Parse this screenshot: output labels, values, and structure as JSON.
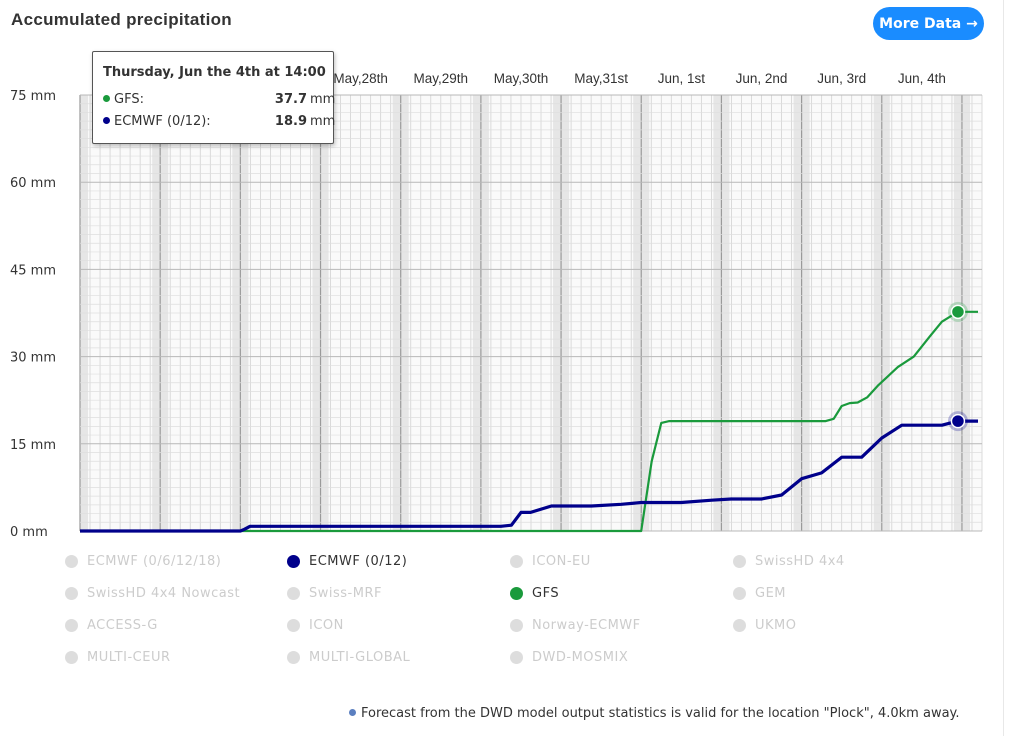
{
  "title": "Accumulated precipitation",
  "more_button": "More Data →",
  "tooltip": {
    "title": "Thursday, Jun the 4th at 14:00",
    "rows": [
      {
        "label": "GFS:",
        "value": "37.7",
        "unit": "mm",
        "color": "#1a9a3c"
      },
      {
        "label": "ECMWF (0/12):",
        "value": "18.9",
        "unit": "mm",
        "color": "#00008b"
      }
    ]
  },
  "legend": [
    {
      "label": "ECMWF (0/6/12/18)",
      "active": false,
      "color": "#dddddd"
    },
    {
      "label": "ECMWF (0/12)",
      "active": true,
      "color": "#00008b"
    },
    {
      "label": "ICON-EU",
      "active": false,
      "color": "#dddddd"
    },
    {
      "label": "SwissHD 4x4",
      "active": false,
      "color": "#dddddd"
    },
    {
      "label": "SwissHD 4x4 Nowcast",
      "active": false,
      "color": "#dddddd"
    },
    {
      "label": "Swiss-MRF",
      "active": false,
      "color": "#dddddd"
    },
    {
      "label": "GFS",
      "active": true,
      "color": "#1a9a3c"
    },
    {
      "label": "GEM",
      "active": false,
      "color": "#dddddd"
    },
    {
      "label": "ACCESS-G",
      "active": false,
      "color": "#dddddd"
    },
    {
      "label": "ICON",
      "active": false,
      "color": "#dddddd"
    },
    {
      "label": "Norway-ECMWF",
      "active": false,
      "color": "#dddddd"
    },
    {
      "label": "UKMO",
      "active": false,
      "color": "#dddddd"
    },
    {
      "label": "MULTI-CEUR",
      "active": false,
      "color": "#dddddd"
    },
    {
      "label": "MULTI-GLOBAL",
      "active": false,
      "color": "#dddddd"
    },
    {
      "label": "DWD-MOSMIX",
      "active": false,
      "color": "#dddddd"
    }
  ],
  "footnote": "Forecast from the DWD model output statistics is valid for the location \"Plock\", 4.0km away.",
  "chart_data": {
    "type": "line",
    "title": "Accumulated precipitation",
    "xlabel": "",
    "ylabel": "",
    "y_unit": "mm",
    "ylim": [
      0,
      75
    ],
    "y_ticks": [
      0,
      15,
      30,
      45,
      60,
      75
    ],
    "y_tick_labels": [
      "0 mm",
      "15 mm",
      "30 mm",
      "45 mm",
      "60 mm",
      "75 mm"
    ],
    "x_start": "May,25th 00:00",
    "x_end": "Jun, 4th 24:00",
    "x_ticks": [
      {
        "label": "May,28th",
        "day": 3.5
      },
      {
        "label": "May,29th",
        "day": 4.5
      },
      {
        "label": "May,30th",
        "day": 5.5
      },
      {
        "label": "May,31st",
        "day": 6.5
      },
      {
        "label": "Jun, 1st",
        "day": 7.5
      },
      {
        "label": "Jun, 2nd",
        "day": 8.5
      },
      {
        "label": "Jun, 3rd",
        "day": 9.5
      },
      {
        "label": "Jun, 4th",
        "day": 10.5
      }
    ],
    "grid": true,
    "series": [
      {
        "name": "GFS",
        "color": "#1a9a3c",
        "points": [
          [
            0.0,
            0
          ],
          [
            7.0,
            0
          ],
          [
            7.13,
            12
          ],
          [
            7.25,
            18.6
          ],
          [
            7.35,
            18.9
          ],
          [
            9.0,
            18.9
          ],
          [
            9.3,
            18.9
          ],
          [
            9.4,
            19.3
          ],
          [
            9.5,
            21.5
          ],
          [
            9.6,
            22.0
          ],
          [
            9.7,
            22.1
          ],
          [
            9.82,
            23
          ],
          [
            9.95,
            25
          ],
          [
            10.2,
            28.2
          ],
          [
            10.4,
            30
          ],
          [
            10.6,
            33.5
          ],
          [
            10.75,
            36
          ],
          [
            10.95,
            37.7
          ],
          [
            11.2,
            37.7
          ]
        ],
        "marker": {
          "day": 10.95,
          "value": 37.7
        }
      },
      {
        "name": "ECMWF (0/12)",
        "color": "#00008b",
        "points": [
          [
            0.0,
            0
          ],
          [
            2.0,
            0
          ],
          [
            2.05,
            0.3
          ],
          [
            2.12,
            0.8
          ],
          [
            5.25,
            0.8
          ],
          [
            5.38,
            1.0
          ],
          [
            5.5,
            3.2
          ],
          [
            5.62,
            3.2
          ],
          [
            5.88,
            4.3
          ],
          [
            6.38,
            4.3
          ],
          [
            6.75,
            4.6
          ],
          [
            7.0,
            4.9
          ],
          [
            7.5,
            4.9
          ],
          [
            7.88,
            5.3
          ],
          [
            8.12,
            5.5
          ],
          [
            8.5,
            5.5
          ],
          [
            8.75,
            6.2
          ],
          [
            9.0,
            9.0
          ],
          [
            9.25,
            10.0
          ],
          [
            9.5,
            12.7
          ],
          [
            9.75,
            12.7
          ],
          [
            10.0,
            16.0
          ],
          [
            10.25,
            18.2
          ],
          [
            10.75,
            18.2
          ],
          [
            10.95,
            18.9
          ],
          [
            11.2,
            18.9
          ]
        ],
        "marker": {
          "day": 10.95,
          "value": 18.9
        }
      }
    ]
  }
}
